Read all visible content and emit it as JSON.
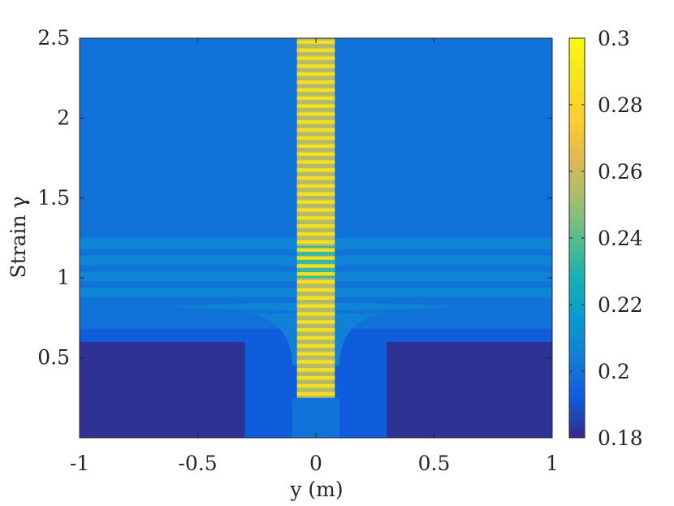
{
  "chart_data": {
    "type": "heatmap",
    "title": "",
    "xlabel": "y (m)",
    "ylabel": "Strain γ",
    "xlim": [
      -1,
      1
    ],
    "ylim": [
      0,
      2.5
    ],
    "xticks": [
      -1,
      -0.5,
      0,
      0.5,
      1
    ],
    "xtick_labels": [
      "-1",
      "-0.5",
      "0",
      "0.5",
      "1"
    ],
    "yticks": [
      0.5,
      1,
      1.5,
      2,
      2.5
    ],
    "ytick_labels": [
      "0.5",
      "1",
      "1.5",
      "2",
      "2.5"
    ],
    "colorbar": {
      "range": [
        0.18,
        0.3
      ],
      "ticks": [
        0.18,
        0.2,
        0.22,
        0.24,
        0.26,
        0.28,
        0.3
      ],
      "tick_labels": [
        "0.18",
        "0.2",
        "0.22",
        "0.24",
        "0.26",
        "0.28",
        "0.3"
      ],
      "colormap": "parula"
    },
    "background_value": 0.2,
    "regions": [
      {
        "value": 0.182,
        "shape": "rect",
        "x": [
          -1,
          -0.3
        ],
        "y": [
          0,
          0.6
        ]
      },
      {
        "value": 0.182,
        "shape": "rect",
        "x": [
          0.3,
          1
        ],
        "y": [
          0,
          0.6
        ]
      },
      {
        "value": 0.192,
        "shape": "rect",
        "x": [
          -1,
          1
        ],
        "y": [
          0.6,
          0.68
        ]
      },
      {
        "value": 0.192,
        "shape": "rect",
        "x": [
          -0.3,
          0.3
        ],
        "y": [
          0,
          0.6
        ]
      },
      {
        "value": 0.2,
        "shape": "rect",
        "x": [
          -0.1,
          0.1
        ],
        "y": [
          0,
          0.25
        ]
      },
      {
        "value": 0.207,
        "shape": "rect",
        "x": [
          -1,
          1
        ],
        "y": [
          0.88,
          0.94
        ]
      },
      {
        "value": 0.207,
        "shape": "rect",
        "x": [
          -1,
          1
        ],
        "y": [
          0.98,
          1.04
        ]
      },
      {
        "value": 0.207,
        "shape": "rect",
        "x": [
          -1,
          1
        ],
        "y": [
          1.08,
          1.14
        ]
      },
      {
        "value": 0.207,
        "shape": "rect",
        "x": [
          -1,
          1
        ],
        "y": [
          1.18,
          1.25
        ]
      },
      {
        "value": 0.207,
        "shape": "lens",
        "x": [
          -0.61,
          0.59
        ],
        "y_center": 0.82,
        "half_height": 0.025
      }
    ],
    "band": {
      "x": [
        -0.08,
        0.08
      ],
      "y": [
        0.25,
        2.5
      ],
      "stripe_pitch": 0.05,
      "peak_value": 0.285,
      "trough_value": 0.255,
      "low_zone": {
        "y": [
          1.0,
          1.2
        ],
        "trough_value": 0.235
      }
    }
  }
}
